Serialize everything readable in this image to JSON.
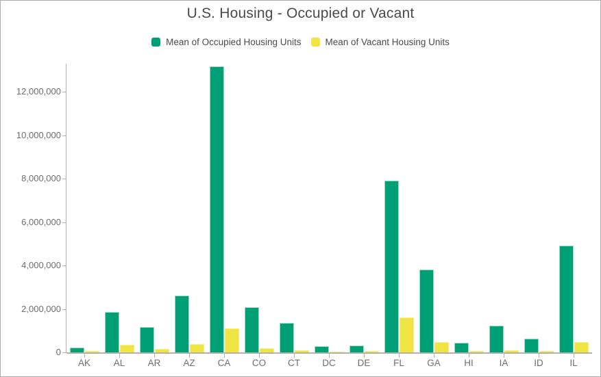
{
  "title": "U.S. Housing - Occupied or Vacant",
  "legend": {
    "items": [
      {
        "label": "Mean of Occupied Housing Units",
        "color": "#00A076",
        "border": "#9ED9C2"
      },
      {
        "label": "Mean of Vacant Housing Units",
        "color": "#F0E442",
        "border": "#F3ED8B"
      }
    ]
  },
  "colors": {
    "axis": "#B5B0A8",
    "tick_label": "#6E6E6E",
    "title_text": "#4A4A4A"
  },
  "chart_data": {
    "type": "bar",
    "title": "U.S. Housing - Occupied or Vacant",
    "xlabel": "",
    "ylabel": "",
    "grid": false,
    "legend_position": "top",
    "categories": [
      "AK",
      "AL",
      "AR",
      "AZ",
      "CA",
      "CO",
      "CT",
      "DC",
      "DE",
      "FL",
      "GA",
      "HI",
      "IA",
      "ID",
      "IL"
    ],
    "series": [
      {
        "name": "Mean of Occupied Housing Units",
        "color": "#00A076",
        "border": "#9ED9C2",
        "values": [
          220000,
          1850000,
          1160000,
          2610000,
          13150000,
          2090000,
          1370000,
          270000,
          330000,
          7920000,
          3810000,
          450000,
          1240000,
          630000,
          4900000
        ]
      },
      {
        "name": "Mean of Vacant Housing Units",
        "color": "#F0E442",
        "border": "#F3ED8B",
        "values": [
          50000,
          360000,
          160000,
          370000,
          1100000,
          200000,
          100000,
          30000,
          60000,
          1610000,
          470000,
          70000,
          110000,
          70000,
          470000
        ]
      }
    ],
    "ylim": [
      0,
      13290000
    ],
    "yticks": [
      0,
      2000000,
      4000000,
      6000000,
      8000000,
      10000000,
      12000000
    ],
    "ytick_labels": [
      "0",
      "2,000,000",
      "4,000,000",
      "6,000,000",
      "8,000,000",
      "10,000,000",
      "12,000,000"
    ]
  }
}
